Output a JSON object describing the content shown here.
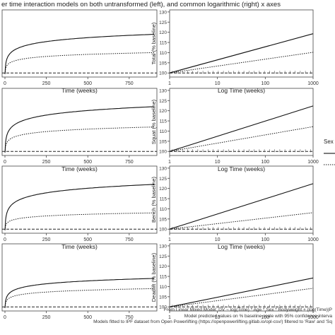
{
  "title": "er time interaction models on both untransformed (left), and common logarithmic (right) x axes",
  "legend": {
    "title": "Sex"
  },
  "captions": [
    "From Linear Mixed Model: DV ~ log(Time) * Age * Sex * Bodyweight + (log(Time)|P",
    "Model predicted values on % baseline scale with 95% confidence interva",
    "Models fitted to IPF dataset from Open Powerlifting (https://openpowerlifting.gitlab.io/opl-csv/) filtered to 'Raw' and 'Sq"
  ],
  "chart_data": [
    {
      "type": "line",
      "panel": "Total",
      "scale": "linear",
      "xlabel": "Time (weeks)",
      "ylabel": "",
      "xlim": [
        0,
        900
      ],
      "xticks": [
        "0",
        "250",
        "500",
        "750"
      ],
      "series": [
        {
          "style": "solid",
          "at_max": 119
        },
        {
          "style": "dotted",
          "at_max": 110
        }
      ],
      "baseline": 100
    },
    {
      "type": "line",
      "panel": "Total",
      "scale": "log",
      "xlabel": "Log Time (weeks)",
      "ylabel": "Total (% baseline)",
      "xlim": [
        1,
        1000
      ],
      "xticks": [
        "1",
        "10",
        "100",
        "1000"
      ],
      "ylim": [
        98,
        131
      ],
      "yticks": [
        "100",
        "105",
        "110",
        "115",
        "120",
        "125",
        "130"
      ],
      "series": [
        {
          "style": "solid",
          "at_max": 119
        },
        {
          "style": "dotted",
          "at_max": 110
        }
      ],
      "baseline": 100
    },
    {
      "type": "line",
      "panel": "Squat",
      "scale": "linear",
      "xlabel": "Time (weeks)",
      "ylabel": "",
      "xlim": [
        0,
        900
      ],
      "xticks": [
        "0",
        "250",
        "500",
        "750"
      ],
      "series": [
        {
          "style": "solid",
          "at_max": 122
        },
        {
          "style": "dotted",
          "at_max": 112
        }
      ],
      "baseline": 100
    },
    {
      "type": "line",
      "panel": "Squat",
      "scale": "log",
      "xlabel": "Log Time (weeks)",
      "ylabel": "Squat (% baseline)",
      "xlim": [
        1,
        1000
      ],
      "xticks": [
        "1",
        "10",
        "100",
        "1000"
      ],
      "ylim": [
        98,
        131
      ],
      "yticks": [
        "100",
        "105",
        "110",
        "115",
        "120",
        "125",
        "130"
      ],
      "series": [
        {
          "style": "solid",
          "at_max": 122
        },
        {
          "style": "dotted",
          "at_max": 112
        }
      ],
      "baseline": 100
    },
    {
      "type": "line",
      "panel": "Bench",
      "scale": "linear",
      "xlabel": "Time (weeks)",
      "ylabel": "",
      "xlim": [
        0,
        900
      ],
      "xticks": [
        "0",
        "250",
        "500",
        "750"
      ],
      "series": [
        {
          "style": "solid",
          "at_max": 122
        },
        {
          "style": "dotted",
          "at_max": 108
        }
      ],
      "baseline": 100
    },
    {
      "type": "line",
      "panel": "Bench",
      "scale": "log",
      "xlabel": "Log Time (weeks)",
      "ylabel": "Bench (% baseline)",
      "xlim": [
        1,
        1000
      ],
      "xticks": [
        "1",
        "10",
        "100",
        "1000"
      ],
      "ylim": [
        98,
        131
      ],
      "yticks": [
        "100",
        "105",
        "110",
        "115",
        "120",
        "125",
        "130"
      ],
      "series": [
        {
          "style": "solid",
          "at_max": 122
        },
        {
          "style": "dotted",
          "at_max": 108
        }
      ],
      "baseline": 100
    },
    {
      "type": "line",
      "panel": "Deadlift",
      "scale": "linear",
      "xlabel": "",
      "ylabel": "",
      "xlim": [
        0,
        900
      ],
      "xticks": [
        "0",
        "250",
        "500",
        "750"
      ],
      "series": [
        {
          "style": "solid",
          "at_max": 114
        },
        {
          "style": "dotted",
          "at_max": 109
        }
      ],
      "baseline": 100
    },
    {
      "type": "line",
      "panel": "Deadlift",
      "scale": "log",
      "xlabel": "",
      "ylabel": "Deadlift (% baseline)",
      "xlim": [
        1,
        1000
      ],
      "xticks": [
        "1",
        "10",
        "100",
        "1000"
      ],
      "ylim": [
        98,
        131
      ],
      "yticks": [
        "100",
        "105",
        "110",
        "115",
        "120",
        "125",
        "130"
      ],
      "series": [
        {
          "style": "solid",
          "at_max": 114
        },
        {
          "style": "dotted",
          "at_max": 109
        }
      ],
      "baseline": 100
    }
  ]
}
